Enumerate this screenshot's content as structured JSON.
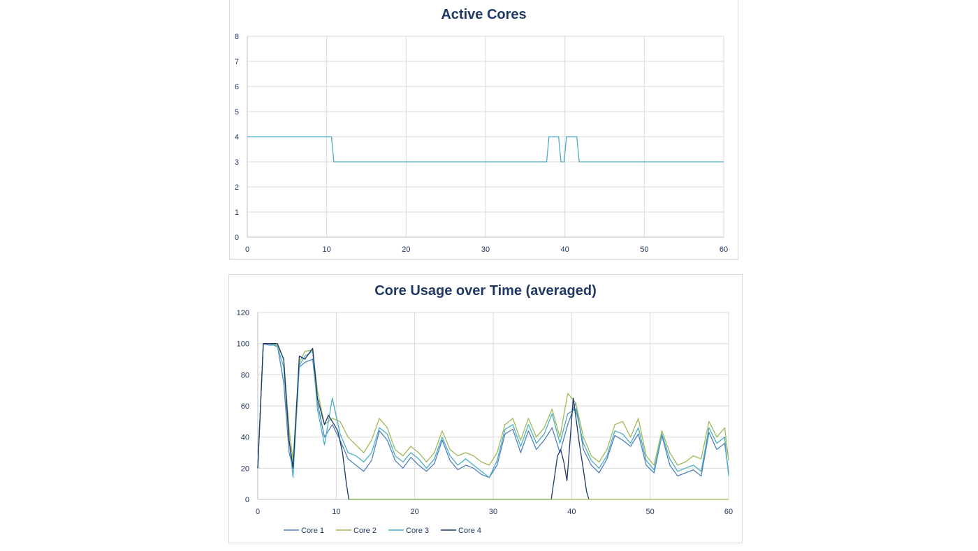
{
  "chart_data": [
    {
      "type": "line",
      "title": "Active Cores",
      "xlabel": "",
      "ylabel": "",
      "xlim": [
        0,
        60
      ],
      "ylim": [
        0,
        8
      ],
      "xticks": [
        0,
        10,
        20,
        30,
        40,
        50,
        60
      ],
      "yticks": [
        0,
        1,
        2,
        3,
        4,
        5,
        6,
        7,
        8
      ],
      "grid": true,
      "colors": {
        "series": "#4bacc6",
        "grid": "#d9d9d9",
        "text": "#1f3864"
      },
      "series": [
        {
          "name": "Active Cores",
          "x": [
            0,
            10.6,
            10.9,
            37.7,
            38.0,
            39.2,
            39.5,
            39.9,
            40.2,
            41.5,
            41.8,
            60
          ],
          "y": [
            4,
            4,
            3,
            3,
            4,
            4,
            3,
            3,
            4,
            4,
            3,
            3
          ]
        }
      ]
    },
    {
      "type": "line",
      "title": "Core Usage over Time (averaged)",
      "xlabel": "",
      "ylabel": "",
      "xlim": [
        0,
        60
      ],
      "ylim": [
        0,
        120
      ],
      "xticks": [
        0,
        10,
        20,
        30,
        40,
        50,
        60
      ],
      "yticks": [
        0,
        20,
        40,
        60,
        80,
        100,
        120
      ],
      "grid": true,
      "legend": "bottom",
      "colors": {
        "grid": "#d9d9d9",
        "text": "#1f3864"
      },
      "series": [
        {
          "name": "Core 1",
          "color": "#4f81bd",
          "x": [
            0,
            0.7,
            1.5,
            2.5,
            3.3,
            4.0,
            4.5,
            5.3,
            6.0,
            7.0,
            7.6,
            8.5,
            9.5,
            10.5,
            11.5,
            12.5,
            13.5,
            14.5,
            15.5,
            16.5,
            17.5,
            18.5,
            19.5,
            20.5,
            21.5,
            22.5,
            23.5,
            24.5,
            25.5,
            26.5,
            27.5,
            28.5,
            29.5,
            30.5,
            31.5,
            32.5,
            33.5,
            34.5,
            35.5,
            36.5,
            37.5,
            38.5,
            39.5,
            40.5,
            41.5,
            42.5,
            43.5,
            44.5,
            45.5,
            46.5,
            47.5,
            48.5,
            49.5,
            50.5,
            51.5,
            52.5,
            53.5,
            54.5,
            55.5,
            56.5,
            57.5,
            58.5,
            59.5,
            60
          ],
          "values": [
            20,
            100,
            99,
            99,
            75,
            30,
            20,
            85,
            88,
            90,
            62,
            40,
            48,
            38,
            26,
            22,
            18,
            25,
            44,
            38,
            25,
            20,
            27,
            22,
            18,
            23,
            38,
            25,
            19,
            22,
            20,
            16,
            14,
            22,
            42,
            45,
            30,
            44,
            32,
            38,
            46,
            30,
            48,
            62,
            32,
            22,
            17,
            26,
            41,
            38,
            34,
            42,
            22,
            17,
            41,
            22,
            15,
            17,
            19,
            15,
            43,
            32,
            36,
            17
          ]
        },
        {
          "name": "Core 2",
          "color": "#9bbb59",
          "x": [
            0,
            0.7,
            1.5,
            2.5,
            3.3,
            4.0,
            4.5,
            5.3,
            6.0,
            7.0,
            7.6,
            8.5,
            9.5,
            10.5,
            11.5,
            12.5,
            13.5,
            14.5,
            15.5,
            16.5,
            17.5,
            18.5,
            19.5,
            20.5,
            21.5,
            22.5,
            23.5,
            24.5,
            25.5,
            26.5,
            27.5,
            28.5,
            29.5,
            30.5,
            31.5,
            32.5,
            33.5,
            34.5,
            35.5,
            36.5,
            37.5,
            38.5,
            39.5,
            40.5,
            41.5,
            42.5,
            43.5,
            44.5,
            45.5,
            46.5,
            47.5,
            48.5,
            49.5,
            50.5,
            51.5,
            52.5,
            53.5,
            54.5,
            55.5,
            56.5,
            57.5,
            58.5,
            59.5,
            60
          ],
          "values": [
            20,
            100,
            100,
            99,
            90,
            45,
            25,
            88,
            95,
            96,
            70,
            48,
            52,
            50,
            40,
            35,
            30,
            38,
            52,
            46,
            32,
            28,
            34,
            30,
            24,
            30,
            44,
            32,
            28,
            30,
            28,
            24,
            22,
            30,
            48,
            52,
            38,
            52,
            40,
            46,
            58,
            40,
            68,
            62,
            40,
            28,
            24,
            32,
            48,
            50,
            40,
            52,
            28,
            22,
            44,
            30,
            22,
            24,
            28,
            26,
            50,
            40,
            46,
            25
          ]
        },
        {
          "name": "Core 3",
          "color": "#4bacc6",
          "x": [
            0,
            0.7,
            1.5,
            2.5,
            3.3,
            4.0,
            4.5,
            5.3,
            6.0,
            7.0,
            7.6,
            8.5,
            9.5,
            10.5,
            11.5,
            12.5,
            13.5,
            14.5,
            15.5,
            16.5,
            17.5,
            18.5,
            19.5,
            20.5,
            21.5,
            22.5,
            23.5,
            24.5,
            25.5,
            26.5,
            27.5,
            28.5,
            29.5,
            30.5,
            31.5,
            32.5,
            33.5,
            34.5,
            35.5,
            36.5,
            37.5,
            38.5,
            39.5,
            40.5,
            41.5,
            42.5,
            43.5,
            44.5,
            45.5,
            46.5,
            47.5,
            48.5,
            49.5,
            50.5,
            51.5,
            52.5,
            53.5,
            54.5,
            55.5,
            56.5,
            57.5,
            58.5,
            59.5,
            60
          ],
          "values": [
            20,
            100,
            100,
            98,
            85,
            38,
            14,
            86,
            92,
            95,
            58,
            35,
            65,
            42,
            30,
            28,
            24,
            30,
            46,
            42,
            28,
            24,
            30,
            26,
            20,
            26,
            40,
            28,
            22,
            26,
            22,
            18,
            14,
            25,
            45,
            48,
            34,
            48,
            36,
            42,
            55,
            36,
            55,
            58,
            36,
            25,
            20,
            28,
            44,
            42,
            36,
            46,
            25,
            19,
            42,
            26,
            18,
            20,
            22,
            18,
            46,
            36,
            40,
            15
          ]
        },
        {
          "name": "Core 4",
          "color": "#1f3864",
          "x": [
            0,
            0.7,
            1.5,
            2.5,
            3.3,
            4.0,
            4.5,
            5.3,
            6.0,
            7.0,
            7.6,
            8.5,
            9.0,
            9.5,
            10.2,
            10.8,
            11.3,
            11.6,
            37.4,
            37.8,
            38.2,
            38.6,
            39.0,
            39.4,
            39.8,
            40.2,
            40.6,
            41.0,
            41.4,
            41.9,
            42.2
          ],
          "values": [
            20,
            100,
            100,
            100,
            90,
            38,
            20,
            92,
            90,
            97,
            65,
            48,
            54,
            50,
            44,
            30,
            10,
            0,
            0,
            14,
            28,
            32,
            24,
            12,
            38,
            65,
            50,
            35,
            22,
            5,
            0
          ]
        }
      ]
    }
  ]
}
